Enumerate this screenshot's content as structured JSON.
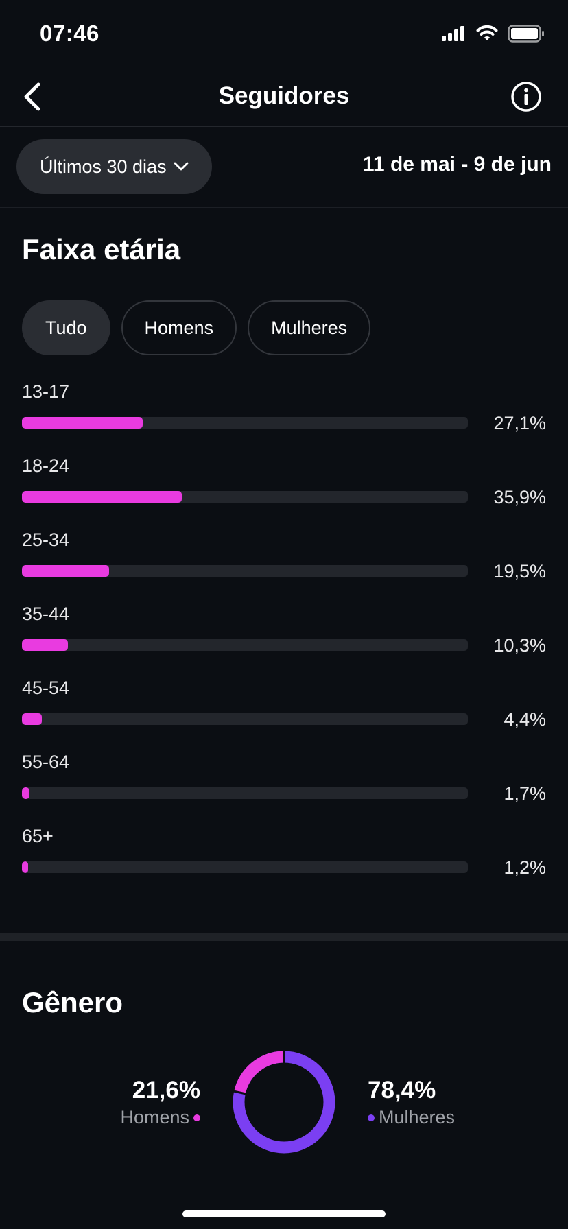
{
  "status_bar": {
    "time": "07:46"
  },
  "header": {
    "title": "Seguidores"
  },
  "period": {
    "selected": "Últimos 30 dias",
    "date_range": "11 de mai - 9 de jun"
  },
  "age": {
    "title": "Faixa etária",
    "filters": [
      "Tudo",
      "Homens",
      "Mulheres"
    ],
    "active_filter": "Tudo",
    "rows": [
      {
        "label": "13-17",
        "value": 27.1,
        "text": "27,1%"
      },
      {
        "label": "18-24",
        "value": 35.9,
        "text": "35,9%"
      },
      {
        "label": "25-34",
        "value": 19.5,
        "text": "19,5%"
      },
      {
        "label": "35-44",
        "value": 10.3,
        "text": "10,3%"
      },
      {
        "label": "45-54",
        "value": 4.4,
        "text": "4,4%"
      },
      {
        "label": "55-64",
        "value": 1.7,
        "text": "1,7%"
      },
      {
        "label": "65+",
        "value": 1.2,
        "text": "1,2%"
      }
    ]
  },
  "gender": {
    "title": "Gênero",
    "men": {
      "value": 21.6,
      "text": "21,6%",
      "label": "Homens",
      "color": "#e93be0"
    },
    "women": {
      "value": 78.4,
      "text": "78,4%",
      "label": "Mulheres",
      "color": "#7b3ff2"
    }
  },
  "colors": {
    "background": "#0b0e13",
    "accent": "#e93be0",
    "track": "#23262c"
  }
}
